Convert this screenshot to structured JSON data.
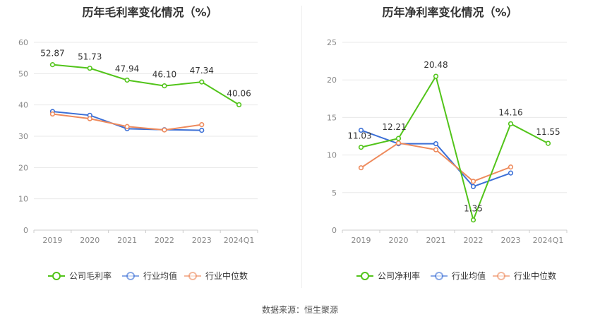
{
  "source_label": "数据来源：恒生聚源",
  "chart_data": [
    {
      "type": "line",
      "title": "历年毛利率变化情况（%）",
      "categories": [
        "2019",
        "2020",
        "2021",
        "2022",
        "2023",
        "2024Q1"
      ],
      "ylim": [
        0,
        60
      ],
      "yticks": [
        0,
        10,
        20,
        30,
        40,
        50,
        60
      ],
      "series": [
        {
          "name": "公司毛利率",
          "color": "#52c41a",
          "values": [
            52.87,
            51.73,
            47.94,
            46.1,
            47.34,
            40.06
          ],
          "labels": [
            "52.87",
            "51.73",
            "47.94",
            "46.10",
            "47.34",
            "40.06"
          ]
        },
        {
          "name": "行业均值",
          "color": "#3b6fd6",
          "values": [
            37.9,
            36.7,
            32.4,
            32.1,
            31.9,
            null
          ]
        },
        {
          "name": "行业中位数",
          "color": "#ee8a5c",
          "values": [
            37.1,
            35.6,
            33.1,
            32.0,
            33.7,
            null
          ]
        }
      ]
    },
    {
      "type": "line",
      "title": "历年净利率变化情况（%）",
      "categories": [
        "2019",
        "2020",
        "2021",
        "2022",
        "2023",
        "2024Q1"
      ],
      "ylim": [
        0,
        25
      ],
      "yticks": [
        0,
        5,
        10,
        15,
        20,
        25
      ],
      "series": [
        {
          "name": "公司净利率",
          "color": "#52c41a",
          "values": [
            11.03,
            12.21,
            20.48,
            1.35,
            14.16,
            11.55
          ],
          "labels": [
            "11.03",
            "12.21",
            "20.48",
            "1.35",
            "14.16",
            "11.55"
          ]
        },
        {
          "name": "行业均值",
          "color": "#3b6fd6",
          "values": [
            13.3,
            11.5,
            11.5,
            5.8,
            7.6,
            null
          ]
        },
        {
          "name": "行业中位数",
          "color": "#ee8a5c",
          "values": [
            8.3,
            11.6,
            10.7,
            6.5,
            8.4,
            null
          ]
        }
      ]
    }
  ]
}
